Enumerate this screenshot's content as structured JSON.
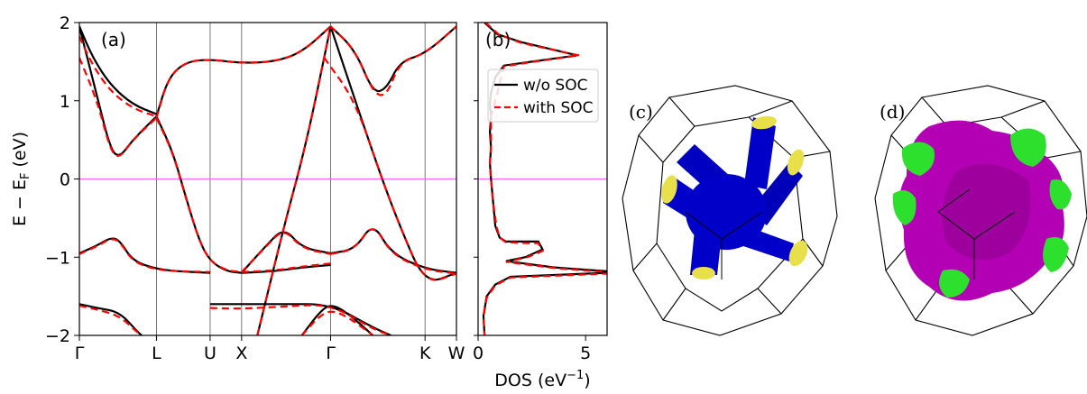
{
  "chart_data": [
    {
      "panel": "(a)",
      "type": "line",
      "ylabel": "E − E",
      "ylabel_sub": "F",
      "ylabel_unit": " (eV)",
      "ylim": [
        -2,
        2
      ],
      "yticks": [
        -2,
        -1,
        0,
        1,
        2
      ],
      "ytick_labels": [
        "−2",
        "−1",
        "0",
        "1",
        "2"
      ],
      "k_points": [
        {
          "label": "Γ",
          "x": 0.0
        },
        {
          "label": "L",
          "x": 0.866
        },
        {
          "label": "U",
          "x": 1.469
        },
        {
          "label": "X",
          "x": 1.823
        },
        {
          "label": "Γ",
          "x": 2.823
        },
        {
          "label": "K",
          "x": 3.884
        },
        {
          "label": "W",
          "x": 4.237
        }
      ],
      "fermi_level": 0,
      "series": [
        {
          "name": "w/o SOC",
          "color": "#000000",
          "bands": [
            [
              [
                0,
                1.95
              ],
              [
                0.15,
                1.55
              ],
              [
                0.35,
                1.2
              ],
              [
                0.6,
                0.95
              ],
              [
                0.866,
                0.83
              ]
            ],
            [
              [
                0,
                1.95
              ],
              [
                0.2,
                1.05
              ],
              [
                0.35,
                0.38
              ],
              [
                0.45,
                0.27
              ],
              [
                0.6,
                0.5
              ],
              [
                0.866,
                0.8
              ]
            ],
            [
              [
                0.866,
                0.8
              ],
              [
                1.05,
                0.35
              ],
              [
                1.2,
                -0.25
              ],
              [
                1.35,
                -0.8
              ],
              [
                1.469,
                -1.05
              ],
              [
                1.65,
                -1.18
              ],
              [
                1.823,
                -1.2
              ]
            ],
            [
              [
                0.866,
                0.8
              ],
              [
                1.0,
                1.3
              ],
              [
                1.2,
                1.5
              ],
              [
                1.469,
                1.53
              ],
              [
                1.823,
                1.48
              ],
              [
                2.2,
                1.5
              ],
              [
                2.5,
                1.62
              ],
              [
                2.823,
                1.95
              ]
            ],
            [
              [
                1.823,
                -1.2
              ],
              [
                2.2,
                -1.18
              ],
              [
                2.5,
                -1.13
              ],
              [
                2.823,
                -1.1
              ]
            ],
            [
              [
                1.823,
                -1.2
              ],
              [
                2.1,
                -0.85
              ],
              [
                2.3,
                -0.62
              ],
              [
                2.5,
                -0.88
              ],
              [
                2.823,
                -0.95
              ]
            ],
            [
              [
                2.0,
                -2.0
              ],
              [
                2.3,
                -0.6
              ],
              [
                2.55,
                0.45
              ],
              [
                2.823,
                1.95
              ]
            ],
            [
              [
                2.823,
                1.95
              ],
              [
                3.1,
                1.0
              ],
              [
                3.4,
                0.0
              ],
              [
                3.6,
                -0.6
              ],
              [
                3.884,
                -1.35
              ],
              [
                4.237,
                -1.2
              ]
            ],
            [
              [
                2.823,
                1.95
              ],
              [
                3.1,
                1.65
              ],
              [
                3.3,
                1.1
              ],
              [
                3.45,
                1.15
              ],
              [
                3.6,
                1.5
              ],
              [
                3.884,
                1.6
              ],
              [
                4.237,
                1.95
              ]
            ],
            [
              [
                2.823,
                -0.95
              ],
              [
                3.1,
                -0.9
              ],
              [
                3.3,
                -0.55
              ],
              [
                3.5,
                -0.95
              ],
              [
                3.884,
                -1.15
              ],
              [
                4.237,
                -1.2
              ]
            ],
            [
              [
                0,
                -0.95
              ],
              [
                0.2,
                -0.85
              ],
              [
                0.35,
                -0.75
              ],
              [
                0.45,
                -0.78
              ],
              [
                0.6,
                -1.05
              ],
              [
                0.866,
                -1.15
              ],
              [
                1.1,
                -1.18
              ],
              [
                1.469,
                -1.2
              ]
            ],
            [
              [
                0,
                -1.6
              ],
              [
                0.2,
                -1.65
              ],
              [
                0.45,
                -1.7
              ],
              [
                0.65,
                -1.95
              ],
              [
                0.7,
                -2.0
              ]
            ],
            [
              [
                1.469,
                -1.6
              ],
              [
                1.823,
                -1.6
              ],
              [
                2.3,
                -1.6
              ],
              [
                2.823,
                -1.6
              ],
              [
                3.3,
                -1.9
              ],
              [
                3.5,
                -2.0
              ]
            ],
            [
              [
                2.5,
                -2.0
              ],
              [
                2.7,
                -1.7
              ],
              [
                2.823,
                -1.6
              ],
              [
                3.0,
                -1.7
              ],
              [
                3.3,
                -2.0
              ]
            ]
          ]
        },
        {
          "name": "with SOC",
          "color": "#ff0000",
          "bands": [
            [
              [
                0,
                1.82
              ],
              [
                0.15,
                1.45
              ],
              [
                0.35,
                1.12
              ],
              [
                0.6,
                0.9
              ],
              [
                0.866,
                0.8
              ]
            ],
            [
              [
                0,
                1.55
              ],
              [
                0.2,
                1.0
              ],
              [
                0.35,
                0.36
              ],
              [
                0.45,
                0.26
              ],
              [
                0.6,
                0.5
              ],
              [
                0.866,
                0.78
              ]
            ],
            [
              [
                0.866,
                0.78
              ],
              [
                1.05,
                0.34
              ],
              [
                1.2,
                -0.26
              ],
              [
                1.35,
                -0.8
              ],
              [
                1.469,
                -1.05
              ],
              [
                1.65,
                -1.17
              ],
              [
                1.823,
                -1.19
              ]
            ],
            [
              [
                0.866,
                0.78
              ],
              [
                1.0,
                1.3
              ],
              [
                1.2,
                1.5
              ],
              [
                1.469,
                1.53
              ],
              [
                1.823,
                1.48
              ],
              [
                2.2,
                1.5
              ],
              [
                2.5,
                1.62
              ],
              [
                2.823,
                1.95
              ]
            ],
            [
              [
                1.823,
                -1.19
              ],
              [
                2.2,
                -1.17
              ],
              [
                2.5,
                -1.12
              ],
              [
                2.823,
                -1.08
              ]
            ],
            [
              [
                1.823,
                -1.19
              ],
              [
                2.1,
                -0.86
              ],
              [
                2.3,
                -0.63
              ],
              [
                2.5,
                -0.89
              ],
              [
                2.823,
                -0.96
              ]
            ],
            [
              [
                2.0,
                -2.0
              ],
              [
                2.3,
                -0.6
              ],
              [
                2.55,
                0.45
              ],
              [
                2.823,
                1.95
              ]
            ],
            [
              [
                2.75,
                1.55
              ],
              [
                3.1,
                1.0
              ],
              [
                3.4,
                0.0
              ],
              [
                3.6,
                -0.6
              ],
              [
                3.884,
                -1.35
              ],
              [
                4.237,
                -1.21
              ]
            ],
            [
              [
                2.823,
                1.95
              ],
              [
                3.1,
                1.65
              ],
              [
                3.3,
                1.1
              ],
              [
                3.45,
                1.05
              ],
              [
                3.6,
                1.5
              ],
              [
                3.884,
                1.6
              ],
              [
                4.237,
                1.95
              ]
            ],
            [
              [
                2.823,
                -0.96
              ],
              [
                3.1,
                -0.9
              ],
              [
                3.3,
                -0.55
              ],
              [
                3.5,
                -0.96
              ],
              [
                3.884,
                -1.16
              ],
              [
                4.237,
                -1.21
              ]
            ],
            [
              [
                0,
                -0.96
              ],
              [
                0.2,
                -0.86
              ],
              [
                0.35,
                -0.76
              ],
              [
                0.45,
                -0.79
              ],
              [
                0.6,
                -1.06
              ],
              [
                0.866,
                -1.16
              ],
              [
                1.1,
                -1.18
              ],
              [
                1.469,
                -1.19
              ]
            ],
            [
              [
                0,
                -1.62
              ],
              [
                0.2,
                -1.67
              ],
              [
                0.45,
                -1.75
              ],
              [
                0.65,
                -1.96
              ],
              [
                0.7,
                -2.0
              ]
            ],
            [
              [
                1.469,
                -1.65
              ],
              [
                1.823,
                -1.66
              ],
              [
                2.3,
                -1.63
              ],
              [
                2.823,
                -1.6
              ],
              [
                3.3,
                -1.92
              ],
              [
                3.5,
                -2.0
              ]
            ],
            [
              [
                2.5,
                -2.0
              ],
              [
                2.7,
                -1.75
              ],
              [
                2.823,
                -1.68
              ],
              [
                3.0,
                -1.75
              ],
              [
                3.3,
                -2.0
              ]
            ]
          ]
        }
      ]
    },
    {
      "panel": "(b)",
      "type": "line",
      "xlabel": "DOS (eV",
      "xlabel_sup": "−1",
      "xlabel_close": ")",
      "xlim": [
        0,
        6
      ],
      "xticks": [
        0,
        5
      ],
      "xtick_labels": [
        "0",
        "5"
      ],
      "ylim": [
        -2,
        2
      ],
      "fermi_level": 0,
      "legend_position": "top-right",
      "series": [
        {
          "name": "w/o SOC",
          "color": "#000000",
          "points": [
            [
              0.3,
              2.0
            ],
            [
              0.9,
              1.85
            ],
            [
              2.0,
              1.75
            ],
            [
              4.0,
              1.62
            ],
            [
              4.6,
              1.58
            ],
            [
              2.5,
              1.5
            ],
            [
              1.2,
              1.45
            ],
            [
              0.8,
              1.3
            ],
            [
              0.6,
              1.1
            ],
            [
              0.55,
              0.95
            ],
            [
              0.6,
              0.8
            ],
            [
              0.55,
              0.6
            ],
            [
              0.6,
              0.4
            ],
            [
              0.55,
              0.2
            ],
            [
              0.6,
              0.0
            ],
            [
              0.7,
              -0.3
            ],
            [
              0.8,
              -0.6
            ],
            [
              1.0,
              -0.75
            ],
            [
              1.3,
              -0.8
            ],
            [
              2.2,
              -0.8
            ],
            [
              2.8,
              -0.8
            ],
            [
              3.0,
              -0.9
            ],
            [
              2.2,
              -1.0
            ],
            [
              1.3,
              -1.05
            ],
            [
              3.5,
              -1.13
            ],
            [
              6.0,
              -1.18
            ],
            [
              6.0,
              -1.2
            ],
            [
              1.5,
              -1.25
            ],
            [
              0.8,
              -1.35
            ],
            [
              0.4,
              -1.5
            ],
            [
              0.25,
              -1.75
            ],
            [
              0.3,
              -2.0
            ]
          ]
        },
        {
          "name": "with SOC",
          "color": "#ff0000",
          "points": [
            [
              0.35,
              2.0
            ],
            [
              0.95,
              1.85
            ],
            [
              2.0,
              1.74
            ],
            [
              4.0,
              1.62
            ],
            [
              4.7,
              1.58
            ],
            [
              2.6,
              1.5
            ],
            [
              1.2,
              1.44
            ],
            [
              0.9,
              1.1
            ],
            [
              0.75,
              0.95
            ],
            [
              0.6,
              0.8
            ],
            [
              0.6,
              0.6
            ],
            [
              0.6,
              0.4
            ],
            [
              0.55,
              0.2
            ],
            [
              0.6,
              0.0
            ],
            [
              0.7,
              -0.3
            ],
            [
              0.85,
              -0.6
            ],
            [
              1.0,
              -0.75
            ],
            [
              1.3,
              -0.81
            ],
            [
              2.3,
              -0.82
            ],
            [
              2.8,
              -0.82
            ],
            [
              3.0,
              -0.92
            ],
            [
              2.3,
              -1.0
            ],
            [
              1.3,
              -1.06
            ],
            [
              3.6,
              -1.14
            ],
            [
              6.0,
              -1.19
            ],
            [
              6.0,
              -1.21
            ],
            [
              1.5,
              -1.26
            ],
            [
              0.8,
              -1.36
            ],
            [
              0.4,
              -1.52
            ],
            [
              0.25,
              -1.76
            ],
            [
              0.3,
              -2.0
            ]
          ]
        }
      ]
    }
  ],
  "panel_c": {
    "label": "(c)",
    "surface_color": "#0000c8",
    "cap_color": "#e8e04a"
  },
  "panel_d": {
    "label": "(d)",
    "surface_color": "#b400b4",
    "pocket_color": "#2ee02e"
  }
}
